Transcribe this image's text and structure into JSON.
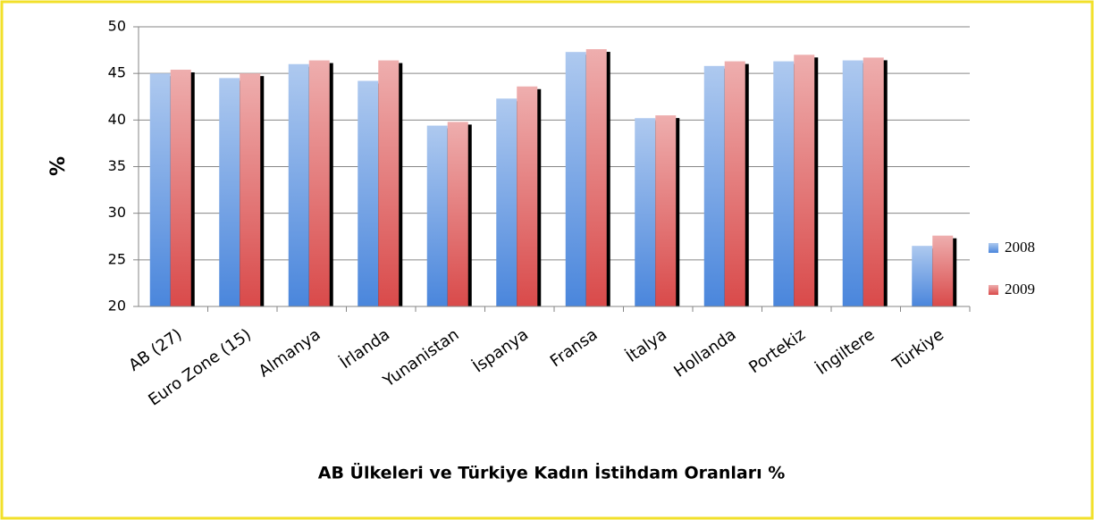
{
  "chart_data": {
    "type": "bar",
    "title": "AB Ülkeleri ve Türkiye Kadın İstihdam Oranları %",
    "y_label": "%",
    "categories": [
      "AB (27)",
      "Euro Zone (15)",
      "Almanya",
      "İrlanda",
      "Yunanistan",
      "İspanya",
      "Fransa",
      "İtalya",
      "Hollanda",
      "Portekiz",
      "İngiltere",
      "Türkiye"
    ],
    "series": [
      {
        "name": "2008",
        "color": "#4a86dc",
        "values": [
          45.0,
          44.5,
          46.0,
          44.2,
          39.4,
          42.3,
          47.3,
          40.2,
          45.8,
          46.3,
          46.4,
          26.5
        ]
      },
      {
        "name": "2009",
        "color": "#d94a4a",
        "values": [
          45.4,
          45.0,
          46.4,
          46.4,
          39.8,
          43.6,
          47.6,
          40.5,
          46.3,
          47.0,
          46.7,
          27.6
        ]
      }
    ],
    "ylim": [
      20,
      50
    ],
    "yticks": [
      20,
      25,
      30,
      35,
      40,
      45,
      50
    ],
    "grid": true,
    "legend": "right"
  }
}
